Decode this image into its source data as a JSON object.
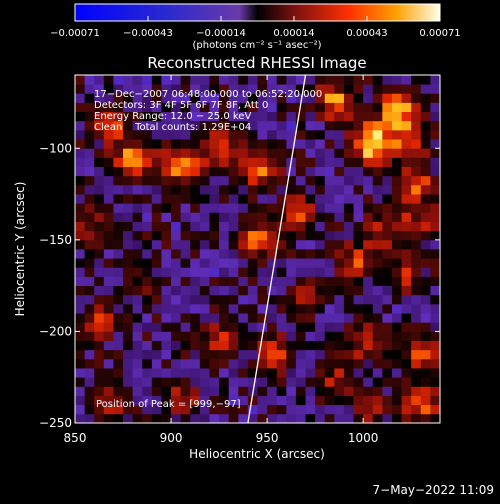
{
  "chart_data": {
    "type": "heatmap",
    "title": "Reconstructed RHESSI Image",
    "xlabel": "Heliocentric X (arcsec)",
    "ylabel": "Heliocentric Y (arcsec)",
    "xlim": [
      850,
      1040
    ],
    "ylim": [
      -250,
      -60
    ],
    "x_ticks": [
      850,
      900,
      950,
      1000
    ],
    "y_ticks": [
      -100,
      -150,
      -200,
      -250
    ],
    "y_tick_labels": [
      "−100",
      "−150",
      "−200",
      "−250"
    ],
    "colorbar": {
      "min": -0.00071,
      "max": 0.00071,
      "ticks": [
        "−0.00071",
        "−0.00043",
        "−0.00014",
        "0.00014",
        "0.00043",
        "0.00071"
      ],
      "unit_label": "(photons cm⁻² s⁻¹ asec⁻²)"
    },
    "info_lines": [
      "17−Dec−2007 06:48:00.000 to 06:52:20.000",
      "Detectors: 3F 4F 5F 6F 7F 8F, Att 0",
      "Energy Range: 12.0 − 25.0 keV",
      "Clean    Total counts: 1.29E+04"
    ],
    "peak_label": "Position of Peak = [999,−97]",
    "peak": [
      999,
      -97
    ],
    "limb_line": [
      [
        940,
        -250
      ],
      [
        970,
        -60
      ]
    ],
    "bright_spots": [
      {
        "x": 1004,
        "y": -97,
        "v": 1.0
      },
      {
        "x": 1018,
        "y": -78,
        "v": 0.8
      },
      {
        "x": 985,
        "y": -74,
        "v": 0.7
      },
      {
        "x": 1028,
        "y": -120,
        "v": 0.55
      },
      {
        "x": 1010,
        "y": -145,
        "v": 0.5
      },
      {
        "x": 880,
        "y": -105,
        "v": 0.65
      },
      {
        "x": 905,
        "y": -110,
        "v": 0.75
      },
      {
        "x": 925,
        "y": -100,
        "v": 0.55
      },
      {
        "x": 946,
        "y": -112,
        "v": 0.7
      },
      {
        "x": 868,
        "y": -88,
        "v": 0.5
      },
      {
        "x": 945,
        "y": -150,
        "v": 0.65
      },
      {
        "x": 966,
        "y": -136,
        "v": 0.55
      },
      {
        "x": 858,
        "y": -140,
        "v": 0.45
      },
      {
        "x": 862,
        "y": -195,
        "v": 0.55
      },
      {
        "x": 925,
        "y": -205,
        "v": 0.5
      },
      {
        "x": 995,
        "y": -162,
        "v": 0.55
      },
      {
        "x": 1022,
        "y": -168,
        "v": 0.5
      },
      {
        "x": 1030,
        "y": -140,
        "v": 0.45
      },
      {
        "x": 1000,
        "y": -205,
        "v": 0.5
      },
      {
        "x": 1030,
        "y": -210,
        "v": 0.55
      },
      {
        "x": 1030,
        "y": -237,
        "v": 0.7
      },
      {
        "x": 1005,
        "y": -240,
        "v": 0.45
      },
      {
        "x": 870,
        "y": -240,
        "v": 0.55
      },
      {
        "x": 905,
        "y": -238,
        "v": 0.45
      },
      {
        "x": 985,
        "y": -225,
        "v": 0.4
      },
      {
        "x": 955,
        "y": -212,
        "v": 0.55
      },
      {
        "x": 885,
        "y": -170,
        "v": 0.35
      },
      {
        "x": 968,
        "y": -180,
        "v": 0.35
      },
      {
        "x": 1025,
        "y": -95,
        "v": 0.6
      }
    ]
  },
  "footer_date": "7−May−2022 11:09"
}
